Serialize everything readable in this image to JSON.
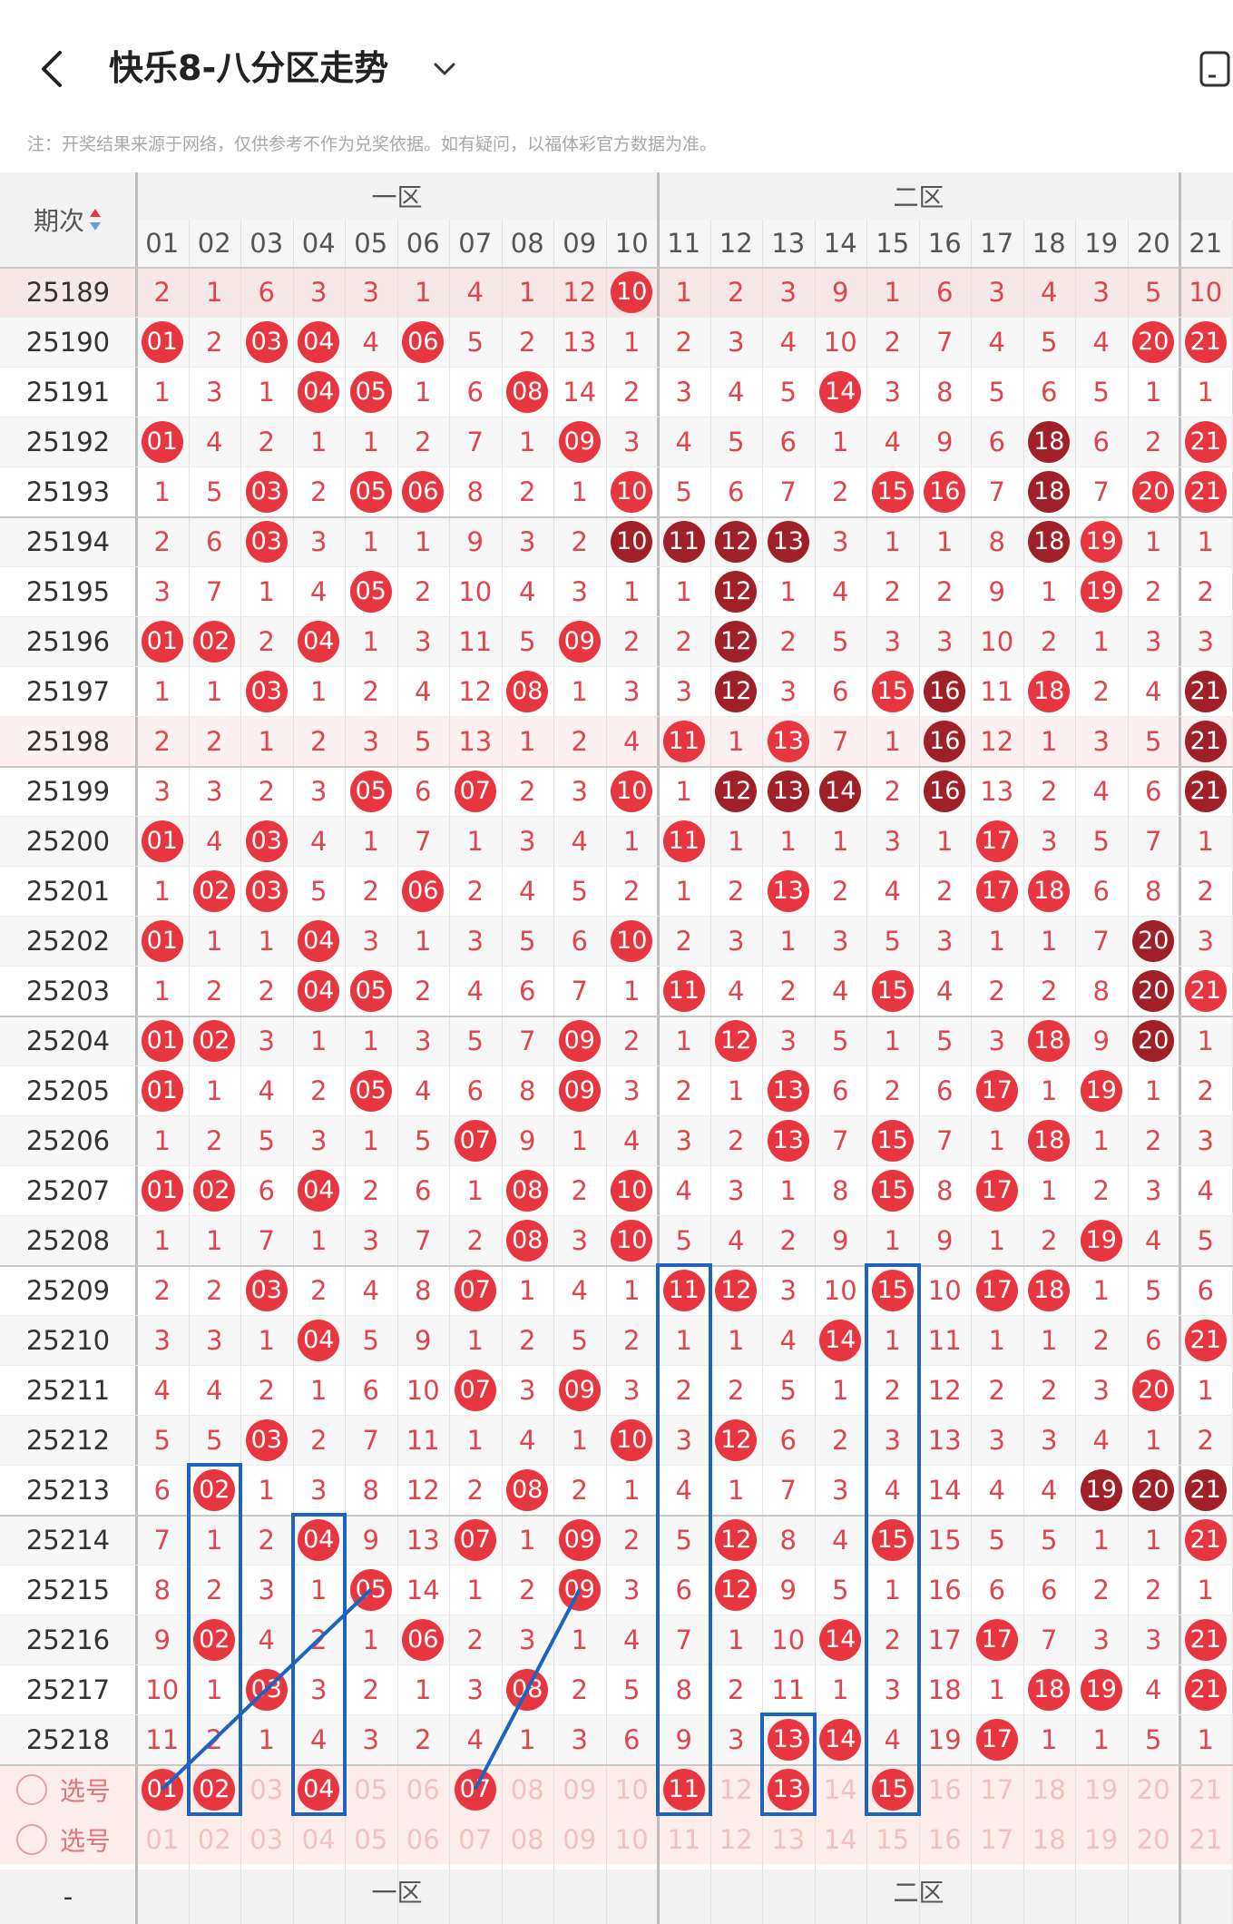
{
  "header": {
    "title": "快乐8-八分区走势",
    "note": "注：开奖结果来源于网络，仅供参考不作为兑奖依据。如有疑问，以福体彩官方数据为准。"
  },
  "table": {
    "period_header": "期次",
    "zones": [
      "一区",
      "二区"
    ],
    "columns": [
      "01",
      "02",
      "03",
      "04",
      "05",
      "06",
      "07",
      "08",
      "09",
      "10",
      "11",
      "12",
      "13",
      "14",
      "15",
      "16",
      "17",
      "18",
      "19",
      "20",
      "21"
    ],
    "select_label": "选号",
    "footer_dash": "-",
    "rows": [
      {
        "period": "25189",
        "cells": [
          "2",
          "1",
          "6",
          "3",
          "3",
          "1",
          "4",
          "1",
          "12",
          "10",
          "1",
          "2",
          "3",
          "9",
          "1",
          "6",
          "3",
          "4",
          "3",
          "5",
          "10"
        ],
        "hits": [
          10
        ]
      },
      {
        "period": "25190",
        "cells": [
          "01",
          "2",
          "03",
          "04",
          "4",
          "06",
          "5",
          "2",
          "13",
          "1",
          "2",
          "3",
          "4",
          "10",
          "2",
          "7",
          "4",
          "5",
          "4",
          "20",
          "21"
        ],
        "hits": [
          1,
          3,
          4,
          6,
          20,
          21
        ]
      },
      {
        "period": "25191",
        "cells": [
          "1",
          "3",
          "1",
          "04",
          "05",
          "1",
          "6",
          "08",
          "14",
          "2",
          "3",
          "4",
          "5",
          "14",
          "3",
          "8",
          "5",
          "6",
          "5",
          "1",
          "1"
        ],
        "hits": [
          4,
          5,
          8,
          14
        ]
      },
      {
        "period": "25192",
        "cells": [
          "01",
          "4",
          "2",
          "1",
          "1",
          "2",
          "7",
          "1",
          "09",
          "3",
          "4",
          "5",
          "6",
          "1",
          "4",
          "9",
          "6",
          "18",
          "6",
          "2",
          "21"
        ],
        "hits": [
          1,
          9,
          18,
          21
        ]
      },
      {
        "period": "25193",
        "cells": [
          "1",
          "5",
          "03",
          "2",
          "05",
          "06",
          "8",
          "2",
          "1",
          "10",
          "5",
          "6",
          "7",
          "2",
          "15",
          "16",
          "7",
          "18",
          "7",
          "20",
          "21"
        ],
        "hits": [
          3,
          5,
          6,
          10,
          15,
          16,
          18,
          20,
          21
        ]
      },
      {
        "period": "25194",
        "cells": [
          "2",
          "6",
          "03",
          "3",
          "1",
          "1",
          "9",
          "3",
          "2",
          "10",
          "11",
          "12",
          "13",
          "3",
          "1",
          "1",
          "8",
          "18",
          "19",
          "1",
          "1"
        ],
        "hits": [
          3,
          10,
          11,
          12,
          13,
          18,
          19
        ]
      },
      {
        "period": "25195",
        "cells": [
          "3",
          "7",
          "1",
          "4",
          "05",
          "2",
          "10",
          "4",
          "3",
          "1",
          "1",
          "12",
          "1",
          "4",
          "2",
          "2",
          "9",
          "1",
          "19",
          "2",
          "2"
        ],
        "hits": [
          5,
          12,
          19
        ]
      },
      {
        "period": "25196",
        "cells": [
          "01",
          "02",
          "2",
          "04",
          "1",
          "3",
          "11",
          "5",
          "09",
          "2",
          "2",
          "12",
          "2",
          "5",
          "3",
          "3",
          "10",
          "2",
          "1",
          "3",
          "3"
        ],
        "hits": [
          1,
          2,
          4,
          9,
          12
        ]
      },
      {
        "period": "25197",
        "cells": [
          "1",
          "1",
          "03",
          "1",
          "2",
          "4",
          "12",
          "08",
          "1",
          "3",
          "3",
          "12",
          "3",
          "6",
          "15",
          "16",
          "11",
          "18",
          "2",
          "4",
          "21"
        ],
        "hits": [
          3,
          8,
          12,
          15,
          16,
          18,
          21
        ]
      },
      {
        "period": "25198",
        "cells": [
          "2",
          "2",
          "1",
          "2",
          "3",
          "5",
          "13",
          "1",
          "2",
          "4",
          "11",
          "1",
          "13",
          "7",
          "1",
          "16",
          "12",
          "1",
          "3",
          "5",
          "21"
        ],
        "hits": [
          11,
          13,
          16,
          21
        ]
      },
      {
        "period": "25199",
        "cells": [
          "3",
          "3",
          "2",
          "3",
          "05",
          "6",
          "07",
          "2",
          "3",
          "10",
          "1",
          "12",
          "13",
          "14",
          "2",
          "16",
          "13",
          "2",
          "4",
          "6",
          "21"
        ],
        "hits": [
          5,
          7,
          10,
          12,
          13,
          14,
          16,
          21
        ]
      },
      {
        "period": "25200",
        "cells": [
          "01",
          "4",
          "03",
          "4",
          "1",
          "7",
          "1",
          "3",
          "4",
          "1",
          "11",
          "1",
          "1",
          "1",
          "3",
          "1",
          "17",
          "3",
          "5",
          "7",
          "1"
        ],
        "hits": [
          1,
          3,
          11,
          17
        ]
      },
      {
        "period": "25201",
        "cells": [
          "1",
          "02",
          "03",
          "5",
          "2",
          "06",
          "2",
          "4",
          "5",
          "2",
          "1",
          "2",
          "13",
          "2",
          "4",
          "2",
          "17",
          "18",
          "6",
          "8",
          "2"
        ],
        "hits": [
          2,
          3,
          6,
          13,
          17,
          18
        ]
      },
      {
        "period": "25202",
        "cells": [
          "01",
          "1",
          "1",
          "04",
          "3",
          "1",
          "3",
          "5",
          "6",
          "10",
          "2",
          "3",
          "1",
          "3",
          "5",
          "3",
          "1",
          "1",
          "7",
          "20",
          "3"
        ],
        "hits": [
          1,
          4,
          10,
          20
        ]
      },
      {
        "period": "25203",
        "cells": [
          "1",
          "2",
          "2",
          "04",
          "05",
          "2",
          "4",
          "6",
          "7",
          "1",
          "11",
          "4",
          "2",
          "4",
          "15",
          "4",
          "2",
          "2",
          "8",
          "20",
          "21"
        ],
        "hits": [
          4,
          5,
          11,
          15,
          20,
          21
        ]
      },
      {
        "period": "25204",
        "cells": [
          "01",
          "02",
          "3",
          "1",
          "1",
          "3",
          "5",
          "7",
          "09",
          "2",
          "1",
          "12",
          "3",
          "5",
          "1",
          "5",
          "3",
          "18",
          "9",
          "20",
          "1"
        ],
        "hits": [
          1,
          2,
          9,
          12,
          18,
          20
        ]
      },
      {
        "period": "25205",
        "cells": [
          "01",
          "1",
          "4",
          "2",
          "05",
          "4",
          "6",
          "8",
          "09",
          "3",
          "2",
          "1",
          "13",
          "6",
          "2",
          "6",
          "17",
          "1",
          "19",
          "1",
          "2"
        ],
        "hits": [
          1,
          5,
          9,
          13,
          17,
          19
        ]
      },
      {
        "period": "25206",
        "cells": [
          "1",
          "2",
          "5",
          "3",
          "1",
          "5",
          "07",
          "9",
          "1",
          "4",
          "3",
          "2",
          "13",
          "7",
          "15",
          "7",
          "1",
          "18",
          "1",
          "2",
          "3"
        ],
        "hits": [
          7,
          13,
          15,
          18
        ]
      },
      {
        "period": "25207",
        "cells": [
          "01",
          "02",
          "6",
          "04",
          "2",
          "6",
          "1",
          "08",
          "2",
          "10",
          "4",
          "3",
          "1",
          "8",
          "15",
          "8",
          "17",
          "1",
          "2",
          "3",
          "4"
        ],
        "hits": [
          1,
          2,
          4,
          8,
          10,
          15,
          17
        ]
      },
      {
        "period": "25208",
        "cells": [
          "1",
          "1",
          "7",
          "1",
          "3",
          "7",
          "2",
          "08",
          "3",
          "10",
          "5",
          "4",
          "2",
          "9",
          "1",
          "9",
          "1",
          "2",
          "19",
          "4",
          "5"
        ],
        "hits": [
          8,
          10,
          19
        ]
      },
      {
        "period": "25209",
        "cells": [
          "2",
          "2",
          "03",
          "2",
          "4",
          "8",
          "07",
          "1",
          "4",
          "1",
          "11",
          "12",
          "3",
          "10",
          "15",
          "10",
          "17",
          "18",
          "1",
          "5",
          "6"
        ],
        "hits": [
          3,
          7,
          11,
          12,
          15,
          17,
          18
        ]
      },
      {
        "period": "25210",
        "cells": [
          "3",
          "3",
          "1",
          "04",
          "5",
          "9",
          "1",
          "2",
          "5",
          "2",
          "1",
          "1",
          "4",
          "14",
          "1",
          "11",
          "1",
          "1",
          "2",
          "6",
          "21"
        ],
        "hits": [
          4,
          14,
          21
        ]
      },
      {
        "period": "25211",
        "cells": [
          "4",
          "4",
          "2",
          "1",
          "6",
          "10",
          "07",
          "3",
          "09",
          "3",
          "2",
          "2",
          "5",
          "1",
          "2",
          "12",
          "2",
          "2",
          "3",
          "20",
          "1"
        ],
        "hits": [
          7,
          9,
          20
        ]
      },
      {
        "period": "25212",
        "cells": [
          "5",
          "5",
          "03",
          "2",
          "7",
          "11",
          "1",
          "4",
          "1",
          "10",
          "3",
          "12",
          "6",
          "2",
          "3",
          "13",
          "3",
          "3",
          "4",
          "1",
          "2"
        ],
        "hits": [
          3,
          10,
          12
        ]
      },
      {
        "period": "25213",
        "cells": [
          "6",
          "02",
          "1",
          "3",
          "8",
          "12",
          "2",
          "08",
          "2",
          "1",
          "4",
          "1",
          "7",
          "3",
          "4",
          "14",
          "4",
          "4",
          "19",
          "20",
          "21"
        ],
        "hits": [
          2,
          8,
          19,
          20,
          21
        ]
      },
      {
        "period": "25214",
        "cells": [
          "7",
          "1",
          "2",
          "04",
          "9",
          "13",
          "07",
          "1",
          "09",
          "2",
          "5",
          "12",
          "8",
          "4",
          "15",
          "15",
          "5",
          "5",
          "1",
          "1",
          "21"
        ],
        "hits": [
          4,
          7,
          9,
          12,
          15,
          21
        ]
      },
      {
        "period": "25215",
        "cells": [
          "8",
          "2",
          "3",
          "1",
          "05",
          "14",
          "1",
          "2",
          "09",
          "3",
          "6",
          "12",
          "9",
          "5",
          "1",
          "16",
          "6",
          "6",
          "2",
          "2",
          "1"
        ],
        "hits": [
          5,
          9,
          12
        ]
      },
      {
        "period": "25216",
        "cells": [
          "9",
          "02",
          "4",
          "2",
          "1",
          "06",
          "2",
          "3",
          "1",
          "4",
          "7",
          "1",
          "10",
          "14",
          "2",
          "17",
          "17",
          "7",
          "3",
          "3",
          "21"
        ],
        "hits": [
          2,
          6,
          14,
          17,
          21
        ]
      },
      {
        "period": "25217",
        "cells": [
          "10",
          "1",
          "03",
          "3",
          "2",
          "1",
          "3",
          "08",
          "2",
          "5",
          "8",
          "2",
          "11",
          "1",
          "3",
          "18",
          "1",
          "18",
          "19",
          "4",
          "21"
        ],
        "hits": [
          3,
          8,
          18,
          19,
          21
        ]
      },
      {
        "period": "25218",
        "cells": [
          "11",
          "2",
          "1",
          "4",
          "3",
          "2",
          "4",
          "1",
          "3",
          "6",
          "9",
          "3",
          "13",
          "14",
          "4",
          "19",
          "17",
          "1",
          "1",
          "5",
          "1"
        ],
        "hits": [
          13,
          14,
          17
        ]
      }
    ],
    "dark_hits": {
      "25194": [
        10,
        11,
        12,
        13,
        18
      ],
      "25195": [
        12
      ],
      "25196": [
        12
      ],
      "25197": [
        12,
        16,
        21
      ],
      "25198": [
        16,
        21
      ],
      "25199": [
        12,
        13,
        14,
        16,
        21
      ],
      "25202": [
        20
      ],
      "25203": [
        20
      ],
      "25204": [
        20
      ],
      "25213": [
        19,
        20,
        21
      ],
      "25192": [
        18
      ],
      "25193": [
        18
      ]
    },
    "select_row1_balls": [
      1,
      2,
      4,
      7,
      11,
      13,
      15
    ]
  },
  "colors": {
    "ball_red": "#e7363f",
    "ball_dark": "#9f2127",
    "missing_text": "#e0454d",
    "box_blue": "#1d63c0"
  }
}
